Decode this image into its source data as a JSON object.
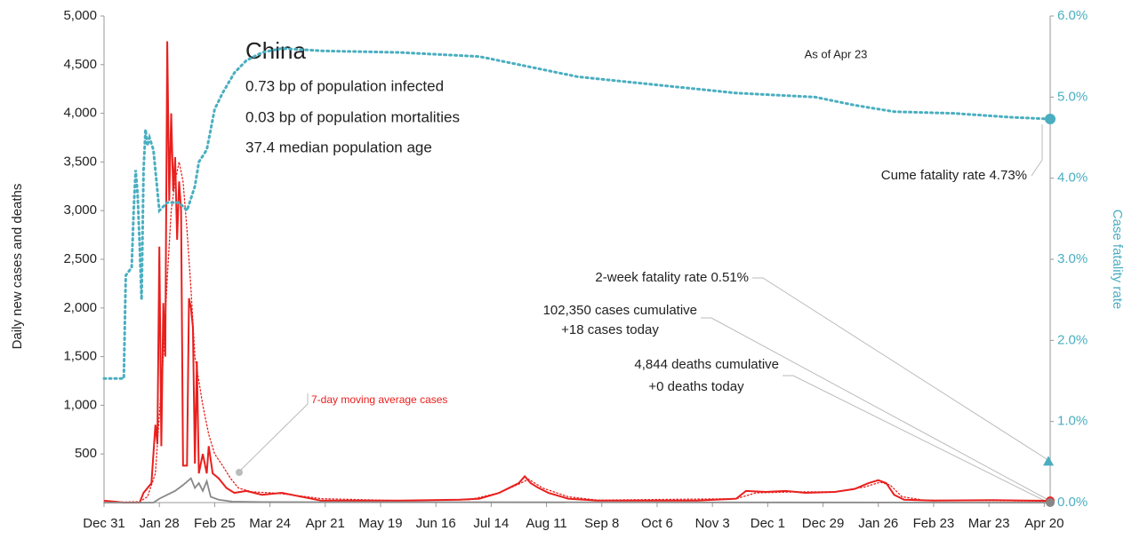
{
  "chart_data": {
    "type": "line",
    "title": "China",
    "info": [
      "0.73 bp of population infected",
      "0.03 bp of population mortalities",
      "37.4 median population age"
    ],
    "as_of": "As of Apr 23",
    "ylabel": "Daily new cases and deaths",
    "y2label": "Case fatality rate",
    "xlim": [
      0,
      479
    ],
    "xticks": [
      {
        "value": 0,
        "label": "Dec 31"
      },
      {
        "value": 28,
        "label": "Jan 28"
      },
      {
        "value": 56,
        "label": "Feb 25"
      },
      {
        "value": 84,
        "label": "Mar 24"
      },
      {
        "value": 112,
        "label": "Apr 21"
      },
      {
        "value": 140,
        "label": "May 19"
      },
      {
        "value": 168,
        "label": "Jun 16"
      },
      {
        "value": 196,
        "label": "Jul 14"
      },
      {
        "value": 224,
        "label": "Aug 11"
      },
      {
        "value": 252,
        "label": "Sep 8"
      },
      {
        "value": 280,
        "label": "Oct 6"
      },
      {
        "value": 308,
        "label": "Nov 3"
      },
      {
        "value": 336,
        "label": "Dec 1"
      },
      {
        "value": 364,
        "label": "Dec 29"
      },
      {
        "value": 392,
        "label": "Jan 26"
      },
      {
        "value": 420,
        "label": "Feb 23"
      },
      {
        "value": 448,
        "label": "Mar 23"
      },
      {
        "value": 476,
        "label": "Apr 20"
      }
    ],
    "ylim": [
      0,
      5000
    ],
    "yticks": [
      500,
      {
        "value": 1000,
        "label": "1,000"
      },
      {
        "value": 1500,
        "label": "1,500"
      },
      {
        "value": 2000,
        "label": "2,000"
      },
      {
        "value": 2500,
        "label": "2,500"
      },
      {
        "value": 3000,
        "label": "3,000"
      },
      {
        "value": 3500,
        "label": "3,500"
      },
      {
        "value": 4000,
        "label": "4,000"
      },
      {
        "value": 4500,
        "label": "4,500"
      },
      {
        "value": 5000,
        "label": "5,000"
      }
    ],
    "y2lim": [
      0,
      6
    ],
    "y2ticks": [
      {
        "value": 0,
        "label": "0.0%"
      },
      {
        "value": 1,
        "label": "1.0%"
      },
      {
        "value": 2,
        "label": "2.0%"
      },
      {
        "value": 3,
        "label": "3.0%"
      },
      {
        "value": 4,
        "label": "4.0%"
      },
      {
        "value": 5,
        "label": "5.0%"
      },
      {
        "value": 6,
        "label": "6.0%"
      }
    ],
    "series": [
      {
        "color": "#e8201e",
        "style": "solid",
        "x": [
          0,
          10,
          18,
          20,
          22,
          24,
          26,
          27,
          28,
          29,
          30,
          31,
          32,
          33,
          34,
          35,
          36,
          37,
          38,
          39,
          40,
          42,
          43,
          44,
          45,
          46,
          47,
          48,
          50,
          52,
          53,
          55,
          58,
          62,
          66,
          72,
          80,
          90,
          100,
          110,
          150,
          180,
          190,
          200,
          205,
          210,
          213,
          216,
          220,
          225,
          235,
          250,
          300,
          320,
          325,
          335,
          345,
          355,
          370,
          380,
          387,
          392,
          396,
          400,
          405,
          420,
          450,
          479
        ],
        "values": [
          20,
          0,
          0,
          100,
          150,
          200,
          800,
          600,
          2630,
          580,
          2050,
          1500,
          4740,
          3100,
          4000,
          3200,
          3550,
          2700,
          3300,
          3000,
          380,
          380,
          2100,
          2000,
          1800,
          400,
          1450,
          300,
          500,
          300,
          580,
          300,
          250,
          150,
          100,
          120,
          80,
          100,
          60,
          20,
          20,
          30,
          40,
          100,
          150,
          200,
          270,
          200,
          150,
          100,
          40,
          20,
          20,
          40,
          120,
          110,
          120,
          100,
          110,
          140,
          200,
          230,
          200,
          80,
          30,
          20,
          25,
          18
        ]
      },
      {
        "name": "7-day moving average cases",
        "color": "#e8201e",
        "style": "dotted",
        "x": [
          0,
          18,
          22,
          26,
          28,
          30,
          32,
          34,
          36,
          38,
          40,
          42,
          44,
          46,
          48,
          50,
          53,
          56,
          60,
          64,
          68,
          75,
          85,
          95,
          110,
          150,
          185,
          200,
          210,
          215,
          222,
          235,
          250,
          320,
          330,
          350,
          370,
          385,
          393,
          398,
          404,
          415,
          479
        ],
        "values": [
          0,
          10,
          60,
          300,
          900,
          1500,
          2300,
          3000,
          3300,
          3500,
          3300,
          2800,
          2200,
          1500,
          1250,
          1000,
          700,
          500,
          380,
          250,
          150,
          110,
          100,
          80,
          40,
          20,
          30,
          100,
          190,
          240,
          150,
          60,
          25,
          40,
          100,
          110,
          110,
          160,
          210,
          180,
          60,
          25,
          15
        ]
      },
      {
        "color": "#888888",
        "style": "solid",
        "x": [
          0,
          25,
          28,
          32,
          36,
          40,
          44,
          46,
          48,
          50,
          52,
          54,
          58,
          65,
          80,
          479
        ],
        "values": [
          0,
          0,
          40,
          80,
          120,
          180,
          250,
          150,
          200,
          120,
          220,
          60,
          30,
          10,
          5,
          0
        ]
      },
      {
        "color": "#4aaec0",
        "style": "dotted",
        "axis": "y2",
        "x": [
          0,
          10,
          11,
          14,
          15,
          16,
          17,
          18,
          19,
          20,
          21,
          22,
          23,
          25,
          28,
          32,
          38,
          42,
          46,
          48,
          52,
          56,
          60,
          66,
          72,
          80,
          90,
          110,
          150,
          190,
          210,
          240,
          280,
          320,
          360,
          380,
          400,
          430,
          460,
          479
        ],
        "values": [
          1.53,
          1.53,
          2.8,
          2.9,
          3.6,
          4.1,
          3.8,
          3.2,
          2.5,
          4.1,
          4.6,
          4.4,
          4.5,
          4.35,
          3.6,
          3.7,
          3.7,
          3.6,
          3.9,
          4.2,
          4.35,
          4.85,
          5.05,
          5.3,
          5.45,
          5.55,
          5.6,
          5.57,
          5.55,
          5.5,
          5.4,
          5.25,
          5.15,
          5.05,
          5.0,
          4.9,
          4.82,
          4.8,
          4.75,
          4.73
        ]
      }
    ],
    "two_week_rate": 0.51,
    "annotations": [
      "Cume fatality rate 4.73%",
      "2-week fatality rate 0.51%",
      "102,350 cases cumulative",
      "+18 cases today",
      "4,844 deaths cumulative",
      "+0 deaths today"
    ]
  }
}
